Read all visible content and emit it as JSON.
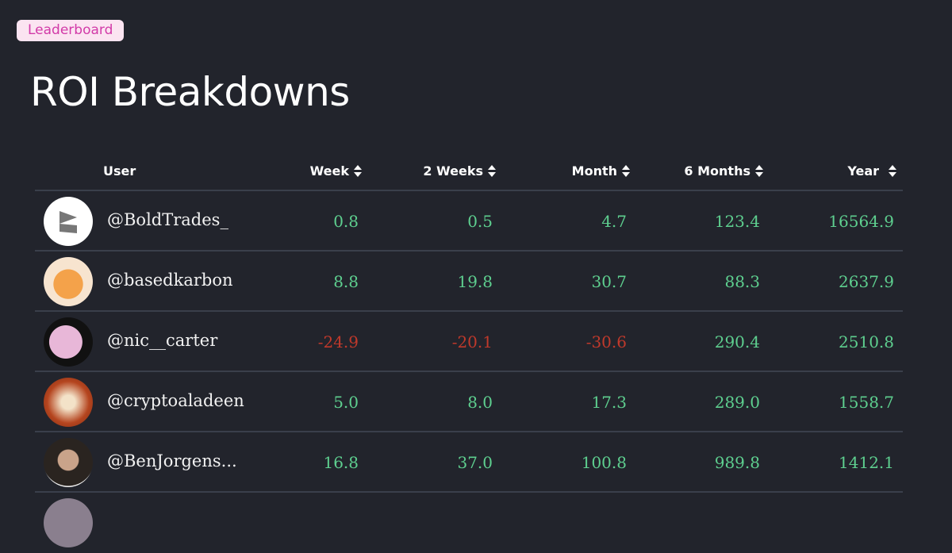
{
  "badge": "Leaderboard",
  "title": "ROI Breakdowns",
  "colors": {
    "background": "#22242c",
    "positive": "#5ecf8f",
    "negative": "#c0392b",
    "badge_bg": "#fbe4f1",
    "badge_text": "#d23aa8"
  },
  "columns": [
    "User",
    "Week",
    "2 Weeks",
    "Month",
    "6 Months",
    "Year"
  ],
  "rows": [
    {
      "user": "@BoldTrades_",
      "values": [
        "0.8",
        "0.5",
        "4.7",
        "123.4",
        "16564.9"
      ],
      "avatar": "logo-avatar"
    },
    {
      "user": "@basedkarbon",
      "values": [
        "8.8",
        "19.8",
        "30.7",
        "88.3",
        "2637.9"
      ],
      "avatar": "fox-avatar"
    },
    {
      "user": "@nic__carter",
      "values": [
        "-24.9",
        "-20.1",
        "-30.6",
        "290.4",
        "2510.8"
      ],
      "avatar": "photo-avatar"
    },
    {
      "user": "@cryptoaladeen",
      "values": [
        "5.0",
        "8.0",
        "17.3",
        "289.0",
        "1558.7"
      ],
      "avatar": "cartoon-avatar"
    },
    {
      "user": "@BenJorgens...",
      "values": [
        "16.8",
        "37.0",
        "100.8",
        "989.8",
        "1412.1"
      ],
      "avatar": "photo-avatar"
    }
  ]
}
